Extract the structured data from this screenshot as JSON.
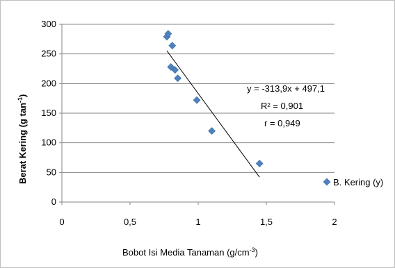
{
  "chart_data": {
    "type": "scatter",
    "title": "",
    "xlabel": "Bobot Isi  Media Tanaman (g/cm",
    "xlabel_sup": "-3",
    "xlabel_end": ")",
    "ylabel": "Berat Kering (g tan",
    "ylabel_sup": "-1",
    "ylabel_end": ")",
    "xlim": [
      0,
      2
    ],
    "ylim": [
      0,
      300
    ],
    "x_ticks": [
      0,
      0.5,
      1,
      1.5,
      2
    ],
    "x_tick_labels": [
      "0",
      "0,5",
      "1",
      "1,5",
      "2"
    ],
    "y_ticks": [
      0,
      50,
      100,
      150,
      200,
      250,
      300
    ],
    "y_tick_labels": [
      "0",
      "50",
      "100",
      "150",
      "200",
      "250",
      "300"
    ],
    "grid": "horizontal",
    "legend_position": "right",
    "series": [
      {
        "name": "B. Kering (y)",
        "marker": "diamond",
        "color": "#4f81bd",
        "points": [
          {
            "x": 0.77,
            "y": 279
          },
          {
            "x": 0.78,
            "y": 284
          },
          {
            "x": 0.8,
            "y": 228
          },
          {
            "x": 0.81,
            "y": 264
          },
          {
            "x": 0.83,
            "y": 223
          },
          {
            "x": 0.85,
            "y": 209
          },
          {
            "x": 0.99,
            "y": 172
          },
          {
            "x": 1.1,
            "y": 120
          },
          {
            "x": 1.45,
            "y": 65
          }
        ]
      }
    ],
    "trendline": {
      "type": "linear",
      "slope": -313.9,
      "intercept": 497.1,
      "x_start": 0.77,
      "x_end": 1.45,
      "color": "#000000"
    },
    "annotations": [
      "y = -313,9x + 497,1",
      "R² = 0,901",
      "r = 0,949"
    ]
  }
}
